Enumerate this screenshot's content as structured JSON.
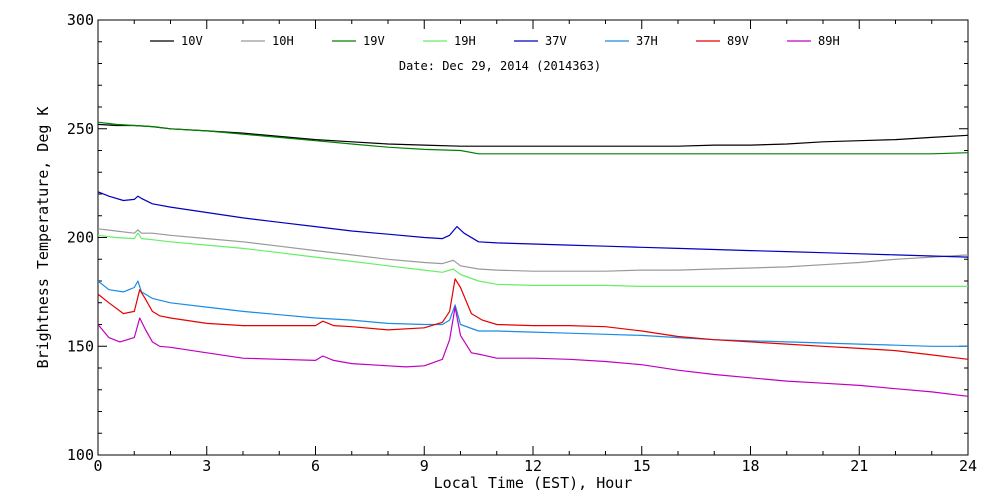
{
  "chart_data": {
    "type": "line",
    "title": "",
    "annotation": "Date: Dec 29, 2014 (2014363)",
    "xlabel": "Local Time (EST), Hour",
    "ylabel": "Brightness Temperature, Deg K",
    "xlim": [
      0,
      24
    ],
    "ylim": [
      100,
      300
    ],
    "xticks": [
      0,
      3,
      6,
      9,
      12,
      15,
      18,
      21,
      24
    ],
    "yticks": [
      100,
      150,
      200,
      250,
      300
    ],
    "grid": false,
    "legend_position": "top",
    "series": [
      {
        "name": "10V",
        "color": "#000000",
        "x": [
          0,
          0.5,
          1,
          1.5,
          2,
          3,
          4,
          5,
          6,
          7,
          8,
          9,
          10,
          10.5,
          11,
          12,
          13,
          14,
          15,
          16,
          17,
          18,
          19,
          20,
          21,
          22,
          23,
          24
        ],
        "y": [
          252,
          251.5,
          251.5,
          251,
          250,
          249,
          248,
          246.5,
          245,
          244,
          243,
          242.5,
          242,
          242,
          242,
          242,
          242,
          242,
          242,
          242,
          242.5,
          242.5,
          243,
          244,
          244.5,
          245,
          246,
          247
        ]
      },
      {
        "name": "10H",
        "color": "#999999",
        "x": [
          0,
          0.5,
          1,
          1.1,
          1.2,
          1.5,
          2,
          3,
          4,
          5,
          6,
          7,
          8,
          9,
          9.5,
          9.8,
          10,
          10.5,
          11,
          12,
          13,
          14,
          15,
          16,
          17,
          18,
          19,
          20,
          21,
          22,
          23,
          24
        ],
        "y": [
          204,
          203,
          202,
          203.5,
          202,
          202,
          201,
          199.5,
          198,
          196,
          194,
          192,
          190,
          188.5,
          188,
          189.5,
          187,
          185.5,
          185,
          184.5,
          184.5,
          184.5,
          185,
          185,
          185.5,
          186,
          186.5,
          187.5,
          188.5,
          190,
          191,
          192
        ]
      },
      {
        "name": "19V",
        "color": "#008000",
        "x": [
          0,
          0.5,
          1,
          1.5,
          2,
          3,
          4,
          5,
          6,
          7,
          8,
          9,
          10,
          10.5,
          11,
          12,
          13,
          14,
          15,
          16,
          17,
          18,
          19,
          20,
          21,
          22,
          23,
          24
        ],
        "y": [
          253,
          252,
          251.5,
          251,
          250,
          249,
          247.5,
          246,
          244.5,
          243,
          241.5,
          240.5,
          240,
          238.5,
          238.5,
          238.5,
          238.5,
          238.5,
          238.5,
          238.5,
          238.5,
          238.5,
          238.5,
          238.5,
          238.5,
          238.5,
          238.5,
          239
        ]
      },
      {
        "name": "19H",
        "color": "#66ee66",
        "x": [
          0,
          0.5,
          1,
          1.1,
          1.2,
          1.5,
          2,
          3,
          4,
          5,
          6,
          7,
          8,
          9,
          9.5,
          9.8,
          10,
          10.5,
          11,
          12,
          13,
          14,
          15,
          16,
          17,
          18,
          19,
          20,
          21,
          22,
          23,
          24
        ],
        "y": [
          201,
          200,
          199.5,
          202,
          199.5,
          199,
          198,
          196.5,
          195,
          193,
          191,
          189,
          187,
          185,
          184,
          185.5,
          183,
          180,
          178.5,
          178,
          178,
          178,
          177.5,
          177.5,
          177.5,
          177.5,
          177.5,
          177.5,
          177.5,
          177.5,
          177.5,
          177.5
        ]
      },
      {
        "name": "37V",
        "color": "#0000c0",
        "x": [
          0,
          0.3,
          0.7,
          1,
          1.1,
          1.2,
          1.5,
          2,
          3,
          4,
          5,
          6,
          7,
          8,
          9,
          9.5,
          9.7,
          9.9,
          10.1,
          10.5,
          11,
          12,
          13,
          14,
          15,
          16,
          17,
          18,
          19,
          20,
          21,
          22,
          23,
          24
        ],
        "y": [
          221,
          219,
          217,
          217.5,
          219,
          218,
          215.5,
          214,
          211.5,
          209,
          207,
          205,
          203,
          201.5,
          200,
          199.5,
          201,
          205,
          202,
          198,
          197.5,
          197,
          196.5,
          196,
          195.5,
          195,
          194.5,
          194,
          193.5,
          193,
          192.5,
          192,
          191.5,
          191
        ]
      },
      {
        "name": "37H",
        "color": "#1a8ce6",
        "x": [
          0,
          0.3,
          0.7,
          1,
          1.1,
          1.2,
          1.5,
          2,
          3,
          4,
          5,
          6,
          7,
          8,
          9,
          9.5,
          9.7,
          9.85,
          10,
          10.5,
          11,
          12,
          13,
          14,
          15,
          16,
          17,
          18,
          19,
          20,
          21,
          22,
          23,
          24
        ],
        "y": [
          180,
          176,
          175,
          177,
          180,
          175,
          172,
          170,
          168,
          166,
          164.5,
          163,
          162,
          160.5,
          160,
          160,
          162,
          169,
          160,
          157,
          157,
          156.5,
          156,
          155.5,
          155,
          154,
          153,
          152.5,
          152,
          151.5,
          151,
          150.5,
          150,
          150
        ]
      },
      {
        "name": "89V",
        "color": "#e60000",
        "x": [
          0,
          0.3,
          0.7,
          1,
          1.15,
          1.3,
          1.5,
          1.7,
          2,
          3,
          4,
          5,
          6,
          6.2,
          6.5,
          7,
          8,
          9,
          9.5,
          9.7,
          9.85,
          10,
          10.3,
          10.6,
          11,
          12,
          13,
          14,
          15,
          16,
          17,
          18,
          19,
          20,
          21,
          22,
          23,
          24
        ],
        "y": [
          174,
          170,
          165,
          166,
          176,
          172,
          166,
          164,
          163,
          160.5,
          159.5,
          159.5,
          159.5,
          161.5,
          159.5,
          159,
          157.5,
          158.5,
          161,
          166,
          181,
          177,
          165,
          162,
          160,
          159.5,
          159.5,
          159,
          157,
          154.5,
          153,
          152,
          151,
          150,
          149,
          148,
          146,
          144
        ]
      },
      {
        "name": "89H",
        "color": "#c000c0",
        "x": [
          0,
          0.3,
          0.6,
          1,
          1.15,
          1.3,
          1.5,
          1.7,
          2,
          3,
          4,
          5,
          6,
          6.2,
          6.5,
          7,
          8,
          8.5,
          9,
          9.5,
          9.7,
          9.85,
          10,
          10.3,
          10.6,
          11,
          12,
          13,
          14,
          15,
          16,
          17,
          18,
          19,
          20,
          21,
          22,
          23,
          24
        ],
        "y": [
          160,
          154,
          152,
          154,
          163,
          158,
          152,
          150,
          149.5,
          147,
          144.5,
          144,
          143.5,
          145.5,
          143.5,
          142,
          141,
          140.5,
          141,
          144,
          153,
          168,
          155,
          147,
          146,
          144.5,
          144.5,
          144,
          143,
          141.5,
          139,
          137,
          135.5,
          134,
          133,
          132,
          130.5,
          129,
          127
        ]
      }
    ]
  }
}
